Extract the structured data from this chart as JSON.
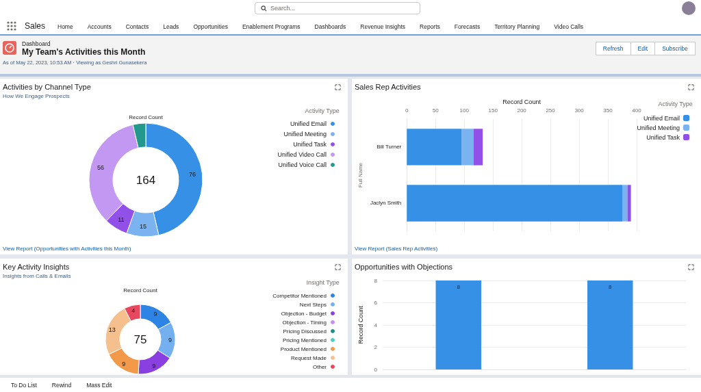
{
  "chart_data": [
    {
      "type": "other",
      "annotations": [
        "Search...",
        "Sales",
        "Home",
        "Accounts",
        "Contacts",
        "Leads",
        "Opportunities",
        "Enablement Programs",
        "Dashboards",
        "Revenue Insights",
        "Reports",
        "Forecasts",
        "Territory Planning",
        "Video Calls"
      ]
    },
    {
      "type": "other",
      "subtitle": "Dashboard",
      "title": "My Team's Activities this Month",
      "annotations": [
        "As of May 22, 2023, 10:53 AM · Viewing as Geshri Gunasekera",
        "Refresh",
        "Edit",
        "Subscribe"
      ]
    },
    {
      "type": "donut",
      "title": "Activities by Channel Type",
      "subtitle": "How We Engage Prospects",
      "legend_title": "Activity Type",
      "legend": "top right",
      "categories": [
        "Unified Email",
        "Unified Meeting",
        "Unified Task",
        "Unified Video Call",
        "Unified Voice Call"
      ],
      "values": [
        76,
        15,
        11,
        56,
        6
      ],
      "value_labels": [
        "76",
        "15",
        "11",
        "56",
        null
      ],
      "colors": [
        "#3590e6",
        "#7ab3ef",
        "#9150e8",
        "#c398f3",
        "#23998e"
      ],
      "annotations": [
        "Record Count",
        "164",
        "View Report (Opportunities with Activities this Month)"
      ]
    },
    {
      "type": "bar",
      "orientation": "horizontal",
      "stacked": true,
      "title": "Sales Rep Activities",
      "xlabel": "Record Count",
      "ylabel": "Full Name",
      "legend_title": "Activity Type",
      "legend": "top right",
      "grid": "x",
      "categories": [
        "Bill Turner",
        "Jaclyn Smith"
      ],
      "series": [
        {
          "name": "Unified Email",
          "color": "#3590e6",
          "values": [
            95,
            375
          ]
        },
        {
          "name": "Unified Meeting",
          "color": "#7ab3ef",
          "values": [
            21,
            9
          ]
        },
        {
          "name": "Unified Task",
          "color": "#9150e8",
          "values": [
            16,
            6
          ]
        }
      ],
      "xlim": [
        0,
        400
      ],
      "xticks": [
        0,
        50,
        100,
        150,
        200,
        250,
        300,
        350,
        400
      ],
      "annotations": [
        "View Report (Sales Rep Activities)"
      ]
    },
    {
      "type": "donut",
      "title": "Key Activity Insights",
      "subtitle": "Insights from Calls & Emails",
      "legend_title": "Insight Type",
      "legend": "top right",
      "categories": [
        "Competitor Mentioned",
        "Next Steps",
        "Objection - Budget",
        "Objection - Timing",
        "Pricing Discussed",
        "Pricing Mentioned",
        "Product Mentioned",
        "Request Made",
        "Other"
      ],
      "values": [
        9,
        9,
        9,
        null,
        null,
        null,
        9,
        13,
        4
      ],
      "value_labels": [
        "9",
        "9",
        "9",
        null,
        null,
        null,
        "9",
        "13",
        "4"
      ],
      "colors": [
        "#2e84e4",
        "#74b0ef",
        "#8a3fe0",
        "#c28ff2",
        "#1f8f85",
        "#4ecdc4",
        "#f2994a",
        "#f6c08e",
        "#e8485f"
      ],
      "annotations": [
        "Record Count",
        "75"
      ]
    },
    {
      "type": "bar",
      "title": "Opportunities with Objections",
      "ylabel": "Record Count",
      "grid": "y",
      "data_labels": true,
      "categories": [
        null,
        null
      ],
      "values": [
        8,
        8
      ],
      "color": "#3590e6",
      "ylim": [
        0,
        8
      ],
      "yticks": [
        0,
        2,
        4,
        6,
        8
      ]
    },
    {
      "type": "other",
      "annotations": [
        "To Do List",
        "Rewind",
        "Mass Edit"
      ]
    }
  ]
}
